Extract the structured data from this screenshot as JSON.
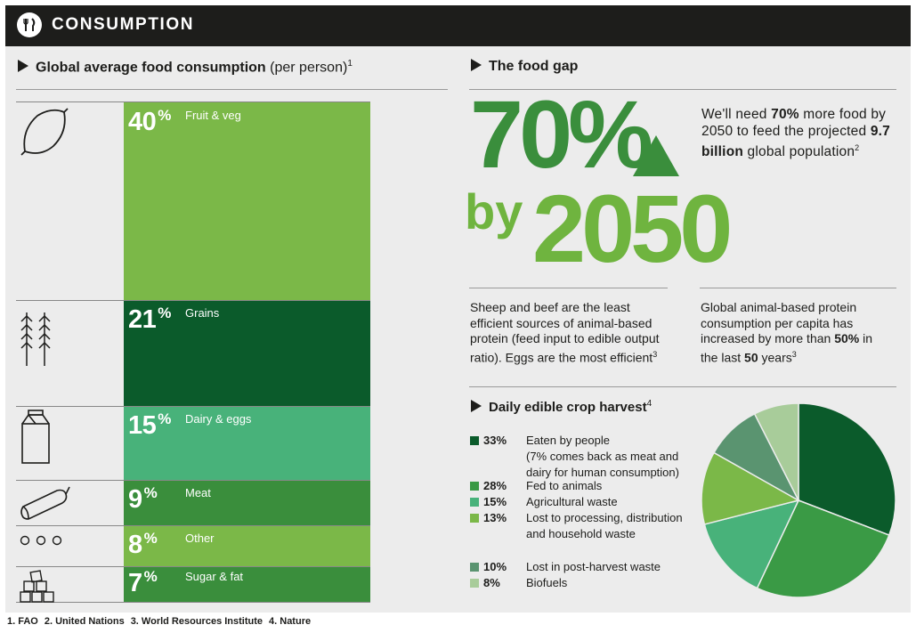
{
  "header": {
    "title": "CONSUMPTION",
    "icon": "cutlery-icon"
  },
  "consumption": {
    "title": "Global average food consumption",
    "title_suffix": "(per person)",
    "footnote": "1",
    "items": [
      {
        "pct": "40",
        "sign": "%",
        "label": "Fruit & veg",
        "color": "#7bb848",
        "icon": "lemon-icon"
      },
      {
        "pct": "21",
        "sign": "%",
        "label": "Grains",
        "color": "#0b5b2b",
        "icon": "wheat-icon"
      },
      {
        "pct": "15",
        "sign": "%",
        "label": "Dairy & eggs",
        "color": "#48b27a",
        "icon": "milk-carton-icon"
      },
      {
        "pct": "9",
        "sign": "%",
        "label": "Meat",
        "color": "#3a8e3c",
        "icon": "sausage-icon"
      },
      {
        "pct": "8",
        "sign": "%",
        "label": "Other",
        "color": "#7bb848",
        "icon": "dots-icon"
      },
      {
        "pct": "7",
        "sign": "%",
        "label": "Sugar & fat",
        "color": "#3a8e3c",
        "icon": "sugar-cubes-icon"
      }
    ]
  },
  "food_gap": {
    "title": "The food gap",
    "big_pct": "70%",
    "big_by": "by",
    "big_year": "2050",
    "desc_1": "We'll need",
    "desc_bold1": "70%",
    "desc_2": "more food by 2050 to feed the projected",
    "desc_bold2": "9.7 billion",
    "desc_3": "global population",
    "desc_fn": "2",
    "sheep_text": "Sheep and beef are the least efficient sources of animal-based protein (feed input to edible output ratio). Eggs are the most efficient",
    "sheep_fn": "3",
    "protein_1": "Global animal-based protein consumption per capita has increased by more than",
    "protein_bold1": "50%",
    "protein_2": "in the last",
    "protein_bold2": "50",
    "protein_3": "years",
    "protein_fn": "3"
  },
  "harvest": {
    "title": "Daily edible crop harvest",
    "footnote": "4"
  },
  "chart_data": {
    "type": "pie",
    "title": "Daily edible crop harvest",
    "slices": [
      {
        "pct": "33%",
        "label": "Eaten by people",
        "note": "(7% comes back as meat and dairy for human consumption)",
        "value": 33,
        "color": "#0b5b2b"
      },
      {
        "pct": "28%",
        "label": "Fed to animals",
        "value": 28,
        "color": "#3a9a45"
      },
      {
        "pct": "15%",
        "label": "Agricultural waste",
        "value": 15,
        "color": "#48b27a"
      },
      {
        "pct": "13%",
        "label": "Lost to processing, distribution and household waste",
        "value": 13,
        "color": "#7bb848"
      },
      {
        "pct": "10%",
        "label": "Lost in post-harvest waste",
        "value": 10,
        "color": "#5a9470"
      },
      {
        "pct": "8%",
        "label": "Biofuels",
        "value": 8,
        "color": "#a8cc9a"
      }
    ]
  },
  "footer": {
    "refs": [
      "1. FAO",
      "2. United Nations",
      "3. World Resources Institute",
      "4. Nature"
    ]
  }
}
